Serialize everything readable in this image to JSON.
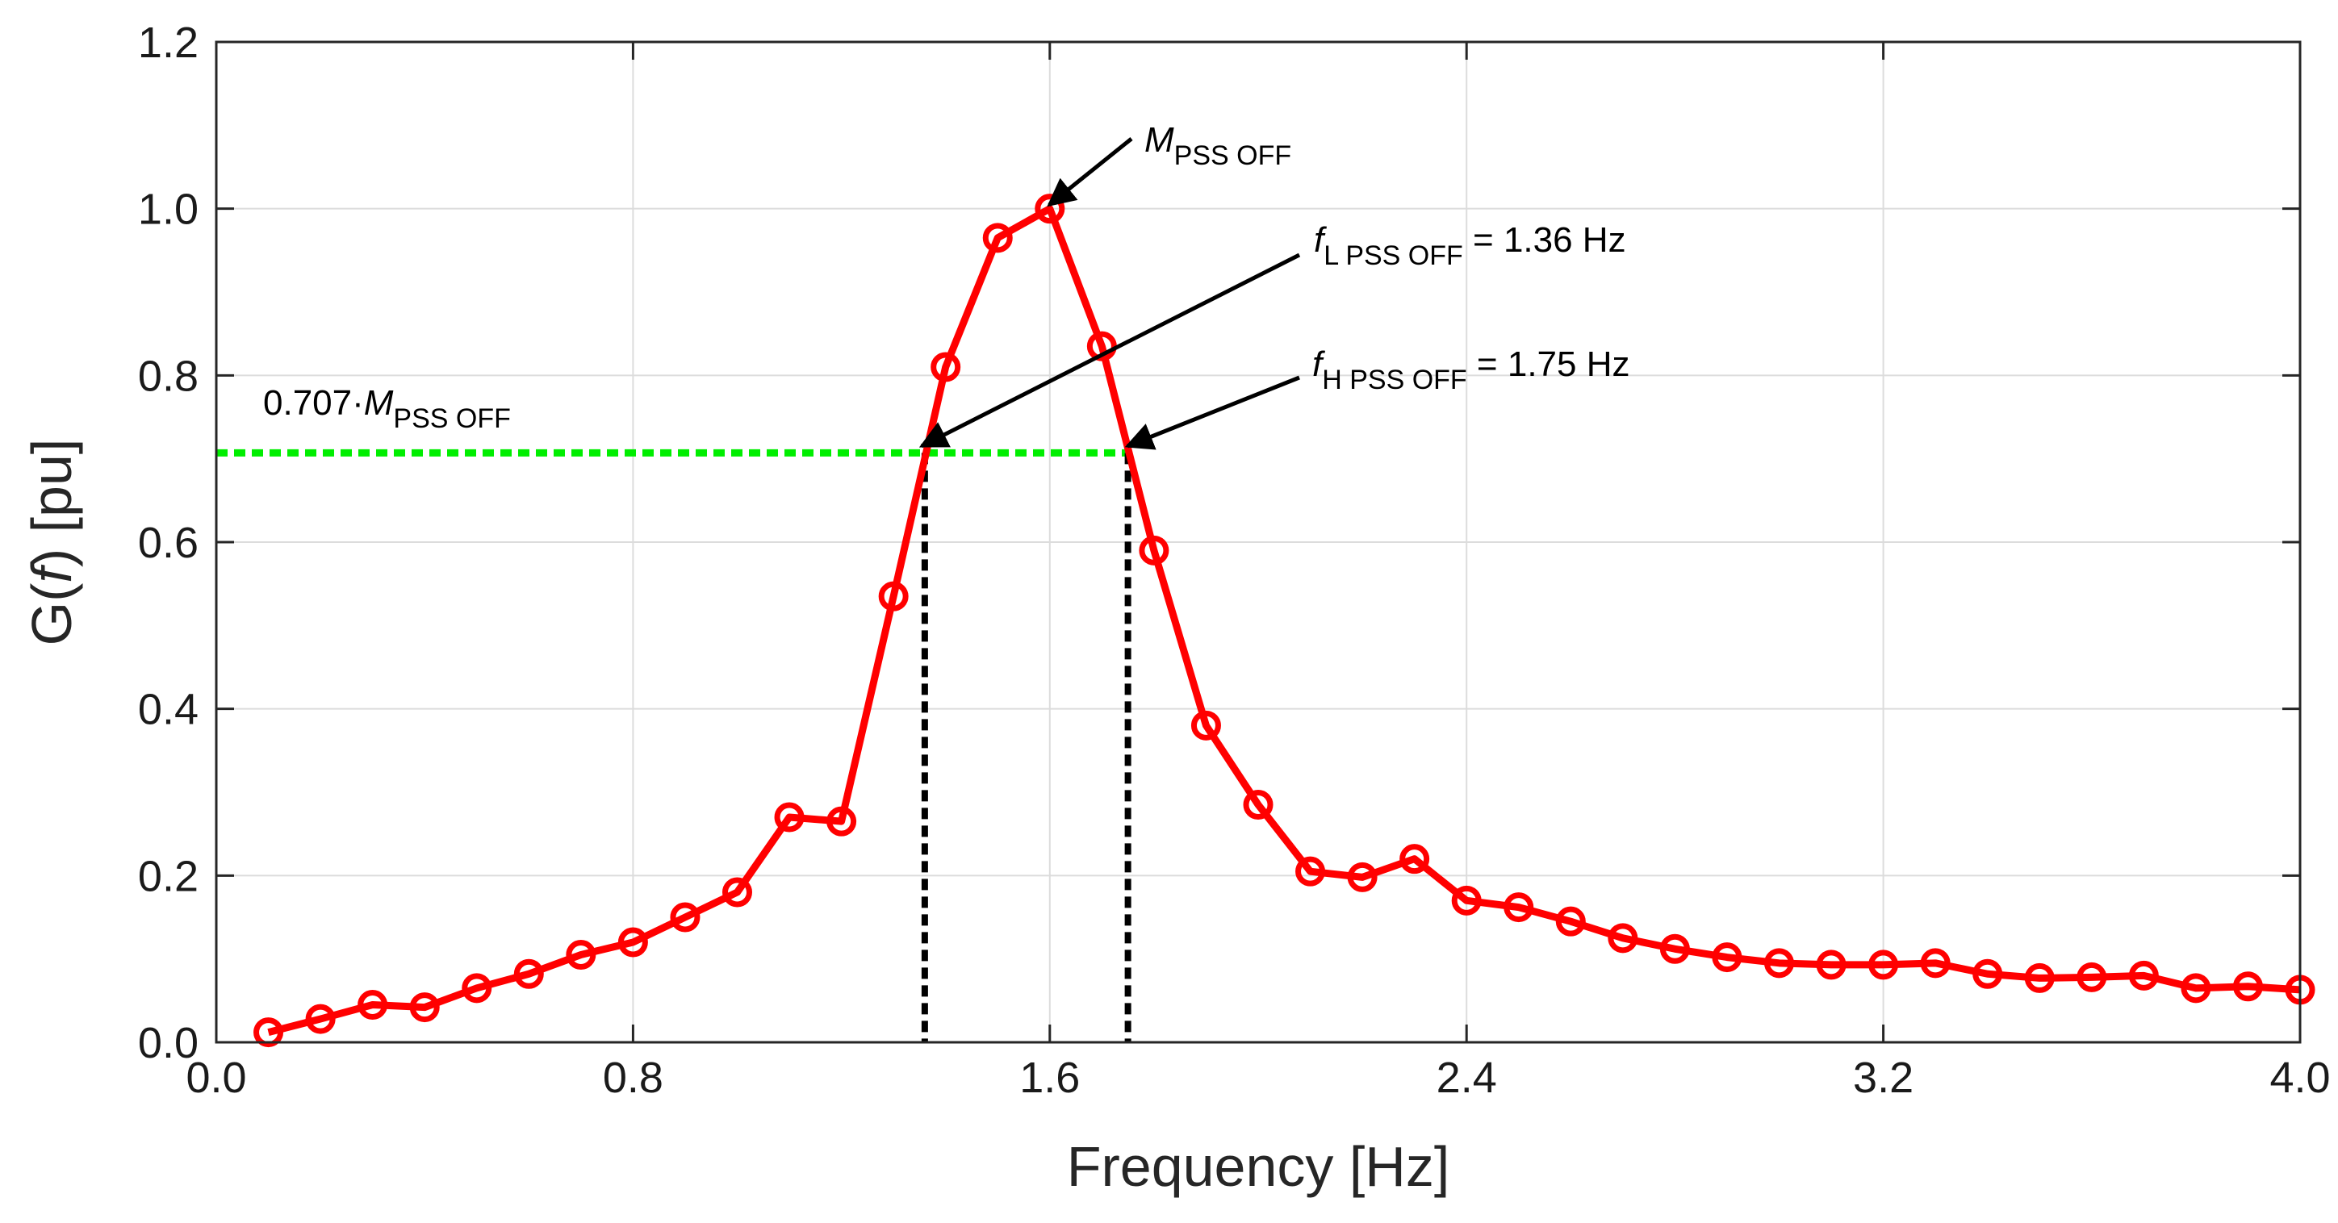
{
  "chart_data": {
    "type": "line",
    "xlabel": "Frequency [Hz]",
    "ylabel_prefix": "G(",
    "ylabel_var": "f",
    "ylabel_suffix": ") [pu]",
    "xlim": [
      0.0,
      4.0
    ],
    "ylim": [
      0.0,
      1.2
    ],
    "xticks": [
      0.0,
      0.8,
      1.6,
      2.4,
      3.2,
      4.0
    ],
    "xtick_labels": [
      "0.0",
      "0.8",
      "1.6",
      "2.4",
      "3.2",
      "4.0"
    ],
    "yticks": [
      0.0,
      0.2,
      0.4,
      0.6,
      0.8,
      1.0,
      1.2
    ],
    "ytick_labels": [
      "0.0",
      "0.2",
      "0.4",
      "0.6",
      "0.8",
      "1.0",
      "1.2"
    ],
    "grid": true,
    "series": [
      {
        "name": "PSS OFF",
        "color": "#ff0000",
        "marker": "circle",
        "x": [
          0.1,
          0.2,
          0.3,
          0.4,
          0.5,
          0.6,
          0.7,
          0.8,
          0.9,
          1.0,
          1.1,
          1.2,
          1.3,
          1.4,
          1.5,
          1.6,
          1.7,
          1.8,
          1.9,
          2.0,
          2.1,
          2.2,
          2.3,
          2.4,
          2.5,
          2.6,
          2.7,
          2.8,
          2.9,
          3.0,
          3.1,
          3.2,
          3.3,
          3.4,
          3.5,
          3.6,
          3.7,
          3.8,
          3.9,
          4.0
        ],
        "y": [
          0.012,
          0.028,
          0.045,
          0.042,
          0.065,
          0.082,
          0.105,
          0.12,
          0.15,
          0.18,
          0.27,
          0.265,
          0.535,
          0.81,
          0.965,
          1.0,
          0.835,
          0.59,
          0.38,
          0.285,
          0.205,
          0.198,
          0.22,
          0.17,
          0.162,
          0.145,
          0.125,
          0.112,
          0.102,
          0.095,
          0.093,
          0.093,
          0.095,
          0.082,
          0.077,
          0.078,
          0.08,
          0.065,
          0.067,
          0.063
        ]
      }
    ],
    "threshold_line": {
      "y": 0.707,
      "x_from": 0.0,
      "x_to": 1.75,
      "color": "#00ee00"
    },
    "cutoff_lines": [
      {
        "x": 1.36,
        "y_top": 0.707,
        "color": "#000000"
      },
      {
        "x": 1.75,
        "y_top": 0.707,
        "color": "#000000"
      }
    ],
    "annotations": {
      "peak": {
        "main": "M",
        "sub": "PSS OFF",
        "target_x": 1.6,
        "target_y": 1.0
      },
      "f_low": {
        "main": "f",
        "sub": "L PSS OFF",
        "suffix": " = 1.36 Hz",
        "target_x": 1.36,
        "target_y": 0.707
      },
      "f_high": {
        "main": "f",
        "sub": "H PSS OFF",
        "suffix": " = 1.75 Hz",
        "target_x": 1.75,
        "target_y": 0.707
      },
      "threshold": {
        "prefix": "0.707·",
        "main": "M",
        "sub": "PSS OFF"
      }
    }
  }
}
